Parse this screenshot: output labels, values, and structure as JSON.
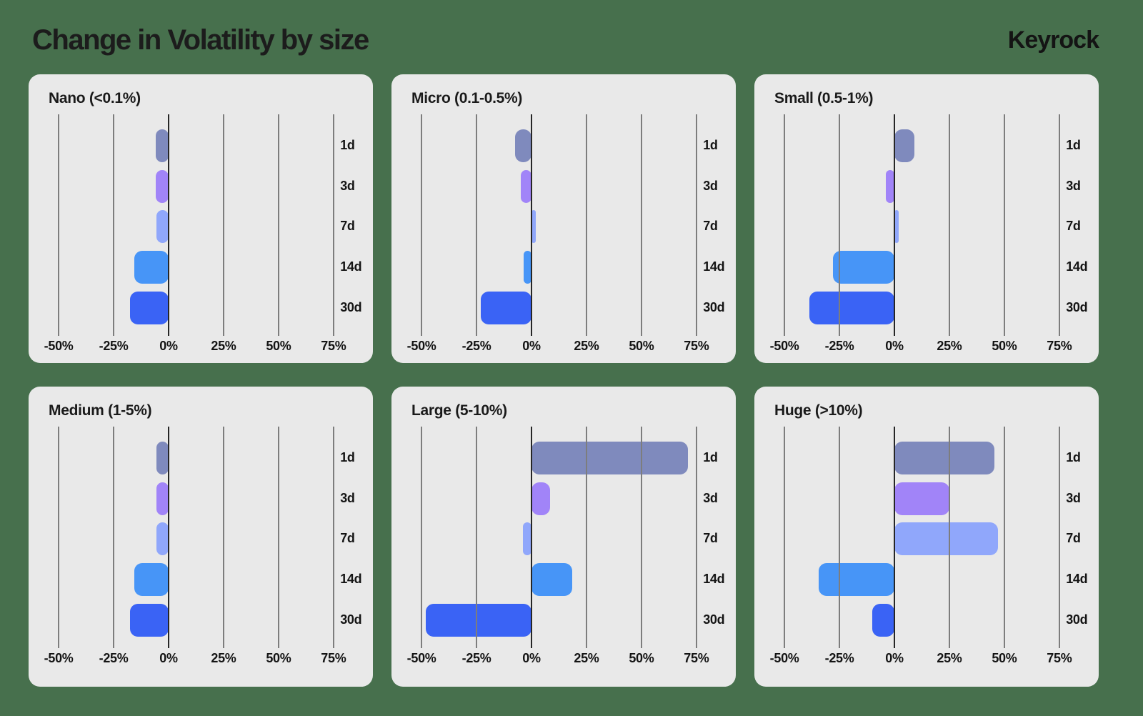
{
  "page": {
    "title": "Change in Volatility by size",
    "brand": "Keyrock",
    "background_color": "#47704d",
    "panel_color": "#e9e9e9"
  },
  "chart_data": {
    "type": "bar",
    "orientation": "horizontal",
    "title": "Change in Volatility by size",
    "unit": "%",
    "categories": [
      "1d",
      "3d",
      "7d",
      "14d",
      "30d"
    ],
    "bar_colors": [
      "#7f8abd",
      "#a184f8",
      "#90a7fb",
      "#4795f7",
      "#3a63f5"
    ],
    "x_ticks": [
      "-50%",
      "-25%",
      "0%",
      "25%",
      "50%",
      "75%"
    ],
    "x_tick_values": [
      -50,
      -25,
      0,
      25,
      50,
      75
    ],
    "xlim": [
      -63.7,
      91.2
    ],
    "grid": true,
    "legend": "none",
    "panels": [
      {
        "title": "Nano (<0.1%)",
        "values": [
          -6,
          -6,
          -5.5,
          -15.5,
          -17.5
        ]
      },
      {
        "title": "Micro (0.1-0.5%)",
        "values": [
          -7.5,
          -5,
          2,
          -3.5,
          -23
        ]
      },
      {
        "title": "Small (0.5-1%)",
        "values": [
          9,
          -4,
          2,
          -28,
          -38.5
        ]
      },
      {
        "title": "Medium (1-5%)",
        "values": [
          -5.5,
          -5.5,
          -5.5,
          -15.5,
          -17.5
        ]
      },
      {
        "title": "Large (5-10%)",
        "values": [
          71,
          8.5,
          -4,
          18.5,
          -48
        ]
      },
      {
        "title": "Huge (>10%)",
        "values": [
          45.5,
          25,
          47,
          -34.5,
          -10
        ]
      }
    ]
  }
}
